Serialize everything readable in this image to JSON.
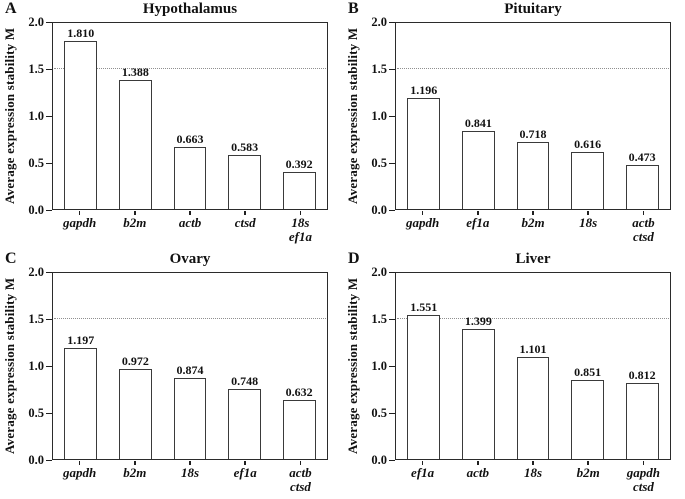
{
  "figure": {
    "background": "#ffffff",
    "text_color": "#111111",
    "frame_color": "#2b2b2b",
    "bar_fill": "#ffffff",
    "bar_border_color": "#3a3a3a",
    "threshold_color": "#8f8f8f",
    "ylabel": "Average expression stability M",
    "ylim": [
      0,
      2
    ],
    "yticks": [
      0,
      0.5,
      1.0,
      1.5,
      2.0
    ],
    "ytick_labels": [
      "0.0",
      "0.5",
      "1.0",
      "1.5",
      "2.0"
    ],
    "threshold": 1.5
  },
  "chart_data": [
    {
      "type": "bar",
      "panel": "A",
      "title": "Hypothalamus",
      "ylabel": "Average expression stability M",
      "ylim": [
        0,
        2
      ],
      "grid": false,
      "threshold_line": 1.5,
      "categories": [
        [
          "gapdh"
        ],
        [
          "b2m"
        ],
        [
          "actb"
        ],
        [
          "ctsd"
        ],
        [
          "18s",
          "ef1a"
        ]
      ],
      "values": [
        1.81,
        1.388,
        0.663,
        0.583,
        0.392
      ],
      "value_labels": [
        "1.810",
        "1.388",
        "0.663",
        "0.583",
        "0.392"
      ]
    },
    {
      "type": "bar",
      "panel": "B",
      "title": "Pituitary",
      "ylabel": "Average expression stability M",
      "ylim": [
        0,
        2
      ],
      "grid": false,
      "threshold_line": 1.5,
      "categories": [
        [
          "gapdh"
        ],
        [
          "ef1a"
        ],
        [
          "b2m"
        ],
        [
          "18s"
        ],
        [
          "actb",
          "ctsd"
        ]
      ],
      "values": [
        1.196,
        0.841,
        0.718,
        0.616,
        0.473
      ],
      "value_labels": [
        "1.196",
        "0.841",
        "0.718",
        "0.616",
        "0.473"
      ]
    },
    {
      "type": "bar",
      "panel": "C",
      "title": "Ovary",
      "ylabel": "Average expression stability M",
      "ylim": [
        0,
        2
      ],
      "grid": false,
      "threshold_line": 1.5,
      "categories": [
        [
          "gapdh"
        ],
        [
          "b2m"
        ],
        [
          "18s"
        ],
        [
          "ef1a"
        ],
        [
          "actb",
          "ctsd"
        ]
      ],
      "values": [
        1.197,
        0.972,
        0.874,
        0.748,
        0.632
      ],
      "value_labels": [
        "1.197",
        "0.972",
        "0.874",
        "0.748",
        "0.632"
      ]
    },
    {
      "type": "bar",
      "panel": "D",
      "title": "Liver",
      "ylabel": "Average expression stability M",
      "ylim": [
        0,
        2
      ],
      "grid": false,
      "threshold_line": 1.5,
      "categories": [
        [
          "ef1a"
        ],
        [
          "actb"
        ],
        [
          "18s"
        ],
        [
          "b2m"
        ],
        [
          "gapdh",
          "ctsd"
        ]
      ],
      "values": [
        1.551,
        1.399,
        1.101,
        0.851,
        0.812
      ],
      "value_labels": [
        "1.551",
        "1.399",
        "1.101",
        "0.851",
        "0.812"
      ]
    }
  ]
}
